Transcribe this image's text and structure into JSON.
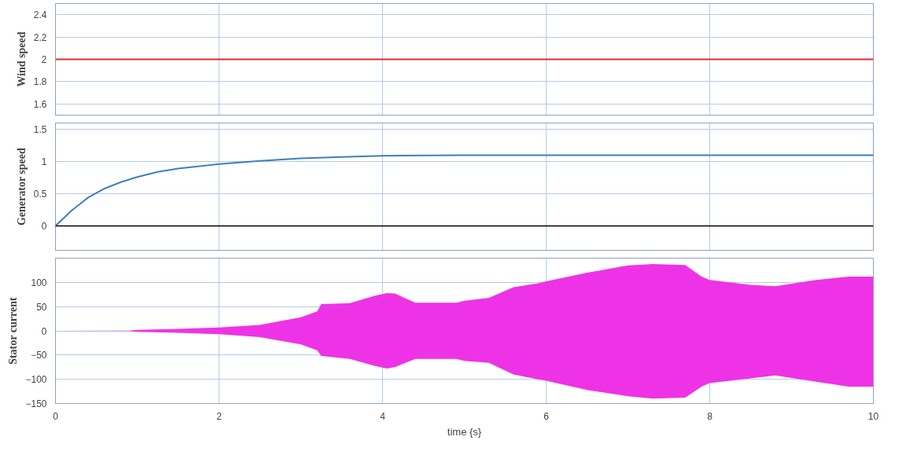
{
  "chart_data": [
    {
      "type": "line",
      "ylabel": "Wind speed",
      "x": [
        0,
        10
      ],
      "xlim": [
        0,
        10
      ],
      "xticks": [
        0,
        2,
        4,
        6,
        8,
        10
      ],
      "ylim": [
        1.5,
        2.5
      ],
      "yticks": [
        1.6,
        1.8,
        2,
        2.2,
        2.4
      ],
      "grid": true,
      "tick_labels": "y",
      "series": [
        {
          "color": "#e8262a",
          "values": [
            2,
            2
          ]
        }
      ]
    },
    {
      "type": "line",
      "ylabel": "Generator speed",
      "x": [
        0,
        0.2,
        0.4,
        0.6,
        0.8,
        1.0,
        1.25,
        1.5,
        2,
        2.5,
        3,
        3.5,
        4,
        5,
        6,
        8,
        10
      ],
      "xlim": [
        0,
        10
      ],
      "xticks": [
        0,
        2,
        4,
        6,
        8,
        10
      ],
      "ylim": [
        -0.38,
        1.6
      ],
      "yticks": [
        0,
        0.5,
        1,
        1.5
      ],
      "grid": true,
      "tick_labels": "y",
      "ref_lines": [
        {
          "axis": "y",
          "value": 0,
          "color": "#000000"
        }
      ],
      "series": [
        {
          "color": "#3d7fc0",
          "values": [
            0,
            0.24,
            0.44,
            0.58,
            0.68,
            0.76,
            0.84,
            0.89,
            0.96,
            1.01,
            1.05,
            1.07,
            1.09,
            1.1,
            1.1,
            1.1,
            1.1
          ]
        }
      ]
    },
    {
      "type": "area",
      "ylabel": "Stator current",
      "xlabel": "time {s}",
      "x": [
        0,
        0.9,
        1,
        1.5,
        2,
        2.5,
        3,
        3.2,
        3.25,
        3.6,
        3.9,
        4.05,
        4.15,
        4.4,
        4.9,
        5,
        5.3,
        5.6,
        5.9,
        6,
        6.5,
        7,
        7.3,
        7.7,
        7.9,
        8,
        8.5,
        8.8,
        9.3,
        9.7,
        10
      ],
      "xlim": [
        0,
        10
      ],
      "xticks": [
        0,
        2,
        4,
        6,
        8,
        10
      ],
      "ylim": [
        -150,
        150
      ],
      "yticks": [
        -150,
        -100,
        -50,
        0,
        50,
        100
      ],
      "grid": true,
      "series": [
        {
          "color": "#ee33e6",
          "values": [
            0,
            0.5,
            2,
            4,
            7,
            12,
            28,
            40,
            55,
            57,
            72,
            78,
            77,
            58,
            58,
            62,
            68,
            90,
            98,
            102,
            120,
            135,
            138,
            136,
            112,
            105,
            95,
            92,
            105,
            112,
            112
          ]
        },
        {
          "color": "#ee33e6",
          "values": [
            0,
            -0.5,
            -2,
            -4,
            -7,
            -13,
            -28,
            -40,
            -52,
            -58,
            -72,
            -78,
            -75,
            -58,
            -58,
            -62,
            -66,
            -90,
            -100,
            -103,
            -122,
            -135,
            -140,
            -138,
            -115,
            -108,
            -98,
            -92,
            -105,
            -115,
            -115
          ]
        }
      ]
    }
  ]
}
